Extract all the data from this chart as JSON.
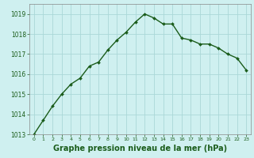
{
  "x": [
    0,
    1,
    2,
    3,
    4,
    5,
    6,
    7,
    8,
    9,
    10,
    11,
    12,
    13,
    14,
    15,
    16,
    17,
    18,
    19,
    20,
    21,
    22,
    23
  ],
  "y": [
    1013.0,
    1013.7,
    1014.4,
    1015.0,
    1015.5,
    1015.8,
    1016.4,
    1016.6,
    1017.2,
    1017.7,
    1018.1,
    1018.6,
    1019.0,
    1018.8,
    1018.5,
    1018.5,
    1017.8,
    1017.7,
    1017.5,
    1017.5,
    1017.3,
    1017.0,
    1016.8,
    1016.2
  ],
  "line_color": "#1a5c1a",
  "marker": "D",
  "marker_size": 2.0,
  "line_width": 1.0,
  "bg_color": "#cff0f0",
  "grid_color": "#aad8d8",
  "xlabel": "Graphe pression niveau de la mer (hPa)",
  "xlabel_fontsize": 7,
  "xlabel_color": "#1a5c1a",
  "ylim": [
    1013,
    1019.5
  ],
  "xlim": [
    -0.5,
    23.5
  ],
  "yticks": [
    1013,
    1014,
    1015,
    1016,
    1017,
    1018,
    1019
  ],
  "xticks": [
    0,
    1,
    2,
    3,
    4,
    5,
    6,
    7,
    8,
    9,
    10,
    11,
    12,
    13,
    14,
    15,
    16,
    17,
    18,
    19,
    20,
    21,
    22,
    23
  ],
  "tick_color": "#1a5c1a",
  "spine_color": "#888888"
}
